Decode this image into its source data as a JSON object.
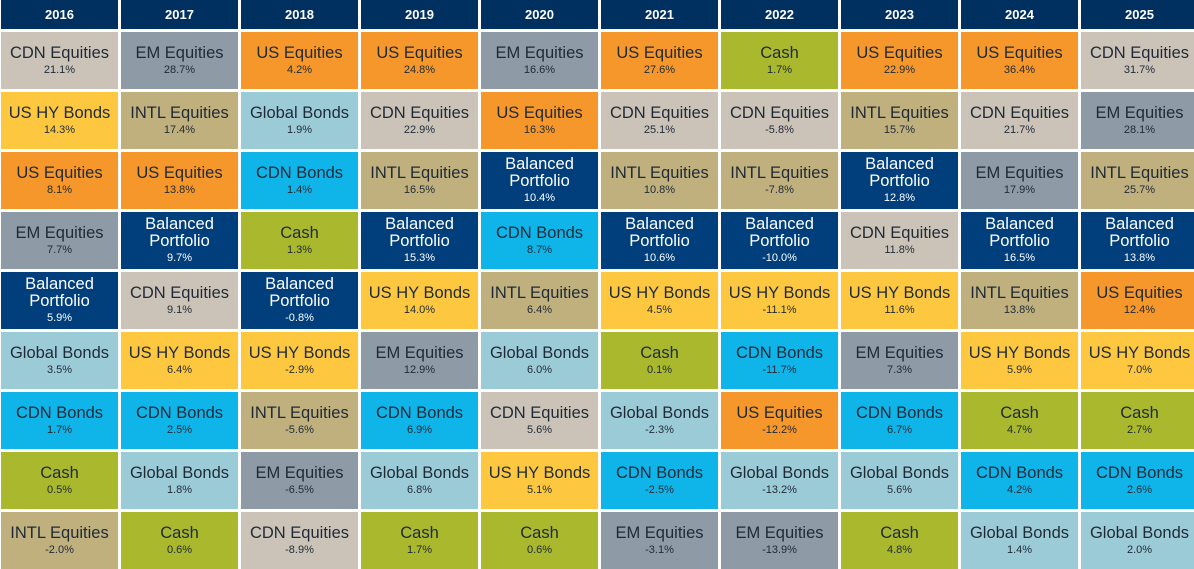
{
  "chart_data": {
    "type": "table",
    "years": [
      "2016",
      "2017",
      "2018",
      "2019",
      "2020",
      "2021",
      "2022",
      "2023",
      "2024",
      "2025"
    ],
    "asset_classes": {
      "CDN Equities": {
        "label": "CDN Equities",
        "color": "#cbc3b8",
        "text": "light"
      },
      "EM Equities": {
        "label": "EM Equities",
        "color": "#8e9aa5",
        "text": "light"
      },
      "US Equities": {
        "label": "US Equities",
        "color": "#f5972a",
        "text": "light"
      },
      "Cash": {
        "label": "Cash",
        "color": "#a9b82c",
        "text": "light"
      },
      "US HY Bonds": {
        "label": "US HY Bonds",
        "color": "#fdc840",
        "text": "light"
      },
      "INTL Equities": {
        "label": "INTL Equities",
        "color": "#bfb07e",
        "text": "light"
      },
      "Global Bonds": {
        "label": "Global Bonds",
        "color": "#9ccbd8",
        "text": "light"
      },
      "CDN Bonds": {
        "label": "CDN Bonds",
        "color": "#0fb4e8",
        "text": "light"
      },
      "Balanced Portfolio": {
        "label": "Balanced\nPortfolio",
        "color": "#003f7c",
        "text": "dark"
      }
    },
    "ranking": [
      [
        {
          "asset": "CDN Equities",
          "value": "21.1%"
        },
        {
          "asset": "US HY Bonds",
          "value": "14.3%"
        },
        {
          "asset": "US Equities",
          "value": "8.1%"
        },
        {
          "asset": "EM Equities",
          "value": "7.7%"
        },
        {
          "asset": "Balanced Portfolio",
          "value": "5.9%"
        },
        {
          "asset": "Global Bonds",
          "value": "3.5%"
        },
        {
          "asset": "CDN Bonds",
          "value": "1.7%"
        },
        {
          "asset": "Cash",
          "value": "0.5%"
        },
        {
          "asset": "INTL Equities",
          "value": "-2.0%"
        }
      ],
      [
        {
          "asset": "EM Equities",
          "value": "28.7%"
        },
        {
          "asset": "INTL Equities",
          "value": "17.4%"
        },
        {
          "asset": "US Equities",
          "value": "13.8%"
        },
        {
          "asset": "Balanced Portfolio",
          "value": "9.7%"
        },
        {
          "asset": "CDN Equities",
          "value": "9.1%"
        },
        {
          "asset": "US HY Bonds",
          "value": "6.4%"
        },
        {
          "asset": "CDN Bonds",
          "value": "2.5%"
        },
        {
          "asset": "Global Bonds",
          "value": "1.8%"
        },
        {
          "asset": "Cash",
          "value": "0.6%"
        }
      ],
      [
        {
          "asset": "US Equities",
          "value": "4.2%"
        },
        {
          "asset": "Global Bonds",
          "value": "1.9%"
        },
        {
          "asset": "CDN Bonds",
          "value": "1.4%"
        },
        {
          "asset": "Cash",
          "value": "1.3%"
        },
        {
          "asset": "Balanced Portfolio",
          "value": "-0.8%"
        },
        {
          "asset": "US HY Bonds",
          "value": "-2.9%"
        },
        {
          "asset": "INTL Equities",
          "value": "-5.6%"
        },
        {
          "asset": "EM Equities",
          "value": "-6.5%"
        },
        {
          "asset": "CDN Equities",
          "value": "-8.9%"
        }
      ],
      [
        {
          "asset": "US Equities",
          "value": "24.8%"
        },
        {
          "asset": "CDN Equities",
          "value": "22.9%"
        },
        {
          "asset": "INTL Equities",
          "value": "16.5%"
        },
        {
          "asset": "Balanced Portfolio",
          "value": "15.3%"
        },
        {
          "asset": "US HY Bonds",
          "value": "14.0%"
        },
        {
          "asset": "EM Equities",
          "value": "12.9%"
        },
        {
          "asset": "CDN Bonds",
          "value": "6.9%"
        },
        {
          "asset": "Global Bonds",
          "value": "6.8%"
        },
        {
          "asset": "Cash",
          "value": "1.7%"
        }
      ],
      [
        {
          "asset": "EM Equities",
          "value": "16.6%"
        },
        {
          "asset": "US Equities",
          "value": "16.3%"
        },
        {
          "asset": "Balanced Portfolio",
          "value": "10.4%"
        },
        {
          "asset": "CDN Bonds",
          "value": "8.7%"
        },
        {
          "asset": "INTL Equities",
          "value": "6.4%"
        },
        {
          "asset": "Global Bonds",
          "value": "6.0%"
        },
        {
          "asset": "CDN Equities",
          "value": "5.6%"
        },
        {
          "asset": "US HY Bonds",
          "value": "5.1%"
        },
        {
          "asset": "Cash",
          "value": "0.6%"
        }
      ],
      [
        {
          "asset": "US Equities",
          "value": "27.6%"
        },
        {
          "asset": "CDN Equities",
          "value": "25.1%"
        },
        {
          "asset": "INTL Equities",
          "value": "10.8%"
        },
        {
          "asset": "Balanced Portfolio",
          "value": "10.6%"
        },
        {
          "asset": "US HY Bonds",
          "value": "4.5%"
        },
        {
          "asset": "Cash",
          "value": "0.1%"
        },
        {
          "asset": "Global Bonds",
          "value": "-2.3%"
        },
        {
          "asset": "CDN Bonds",
          "value": "-2.5%"
        },
        {
          "asset": "EM Equities",
          "value": "-3.1%"
        }
      ],
      [
        {
          "asset": "Cash",
          "value": "1.7%"
        },
        {
          "asset": "CDN Equities",
          "value": "-5.8%"
        },
        {
          "asset": "INTL Equities",
          "value": "-7.8%"
        },
        {
          "asset": "Balanced Portfolio",
          "value": "-10.0%"
        },
        {
          "asset": "US HY Bonds",
          "value": "-11.1%"
        },
        {
          "asset": "CDN Bonds",
          "value": "-11.7%"
        },
        {
          "asset": "US Equities",
          "value": "-12.2%"
        },
        {
          "asset": "Global Bonds",
          "value": "-13.2%"
        },
        {
          "asset": "EM Equities",
          "value": "-13.9%"
        }
      ],
      [
        {
          "asset": "US Equities",
          "value": "22.9%"
        },
        {
          "asset": "INTL Equities",
          "value": "15.7%"
        },
        {
          "asset": "Balanced Portfolio",
          "value": "12.8%"
        },
        {
          "asset": "CDN Equities",
          "value": "11.8%"
        },
        {
          "asset": "US HY Bonds",
          "value": "11.6%"
        },
        {
          "asset": "EM Equities",
          "value": "7.3%"
        },
        {
          "asset": "CDN Bonds",
          "value": "6.7%"
        },
        {
          "asset": "Global Bonds",
          "value": "5.6%"
        },
        {
          "asset": "Cash",
          "value": "4.8%"
        }
      ],
      [
        {
          "asset": "US Equities",
          "value": "36.4%"
        },
        {
          "asset": "CDN Equities",
          "value": "21.7%"
        },
        {
          "asset": "EM Equities",
          "value": "17.9%"
        },
        {
          "asset": "Balanced Portfolio",
          "value": "16.5%"
        },
        {
          "asset": "INTL Equities",
          "value": "13.8%"
        },
        {
          "asset": "US HY Bonds",
          "value": "5.9%"
        },
        {
          "asset": "Cash",
          "value": "4.7%"
        },
        {
          "asset": "CDN Bonds",
          "value": "4.2%"
        },
        {
          "asset": "Global Bonds",
          "value": "1.4%"
        }
      ],
      [
        {
          "asset": "CDN Equities",
          "value": "31.7%"
        },
        {
          "asset": "EM Equities",
          "value": "28.1%"
        },
        {
          "asset": "INTL Equities",
          "value": "25.7%"
        },
        {
          "asset": "Balanced Portfolio",
          "value": "13.8%"
        },
        {
          "asset": "US Equities",
          "value": "12.4%"
        },
        {
          "asset": "US HY Bonds",
          "value": "7.0%"
        },
        {
          "asset": "Cash",
          "value": "2.7%"
        },
        {
          "asset": "CDN Bonds",
          "value": "2.6%"
        },
        {
          "asset": "Global Bonds",
          "value": "2.0%"
        }
      ]
    ],
    "header_color": "#00305f",
    "override_colors": {
      "2025-4": "#f5972a"
    }
  }
}
